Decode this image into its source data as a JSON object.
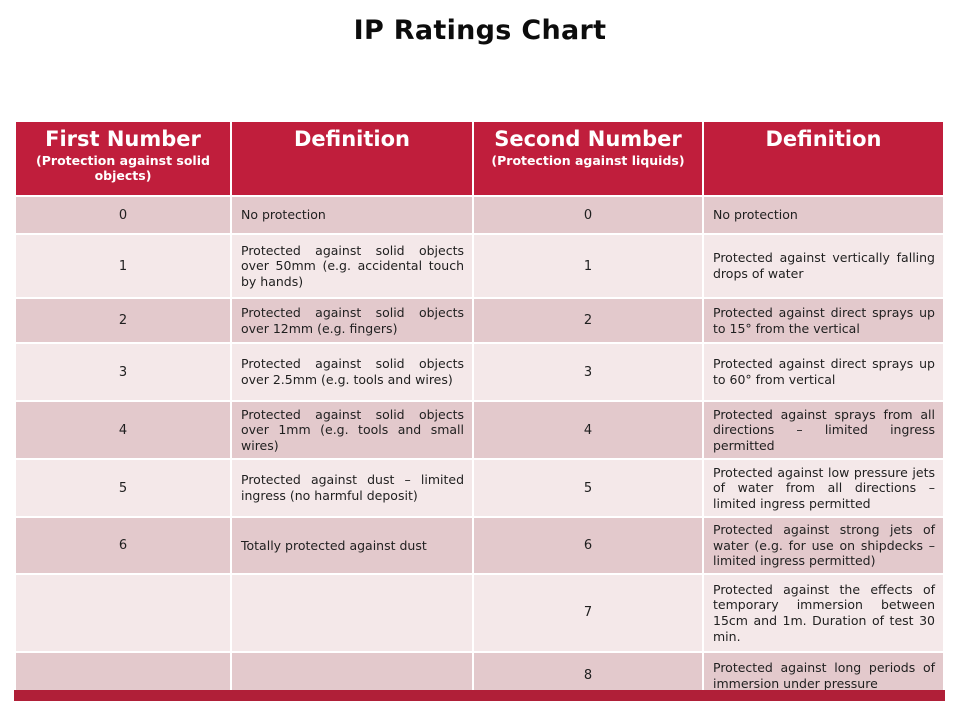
{
  "title": "IP Ratings Chart",
  "colors": {
    "header_bg": "#c01e3c",
    "row_dark": "#e3c9cc",
    "row_light": "#f4e8e9",
    "header_text": "#ffffff",
    "body_text": "#1f1f1f",
    "footer_bar": "#b01f38"
  },
  "chart_data": {
    "type": "table",
    "title": "IP Ratings Chart",
    "columns": [
      {
        "title": "First Number",
        "subtitle": "(Protection against solid objects)"
      },
      {
        "title": "Definition",
        "subtitle": ""
      },
      {
        "title": "Second Number",
        "subtitle": "(Protection against liquids)"
      },
      {
        "title": "Definition",
        "subtitle": ""
      }
    ],
    "rows": [
      [
        "0",
        "No protection",
        "0",
        "No protection"
      ],
      [
        "1",
        "Protected against solid objects over 50mm (e.g. accidental touch by hands)",
        "1",
        "Protected against vertically falling drops of water"
      ],
      [
        "2",
        "Protected against solid objects over 12mm (e.g. fingers)",
        "2",
        "Protected against direct sprays up to 15° from the vertical"
      ],
      [
        "3",
        "Protected against solid objects over 2.5mm (e.g. tools and wires)",
        "3",
        "Protected against direct sprays up to 60° from vertical"
      ],
      [
        "4",
        "Protected against solid objects over 1mm (e.g. tools and small wires)",
        "4",
        "Protected against sprays from all directions – limited ingress permitted"
      ],
      [
        "5",
        "Protected against dust – limited ingress (no harmful deposit)",
        "5",
        "Protected against low pressure jets of water from all directions – limited ingress permitted"
      ],
      [
        "6",
        "Totally protected against dust",
        "6",
        "Protected against strong jets of water (e.g. for use on shipdecks – limited ingress permitted)"
      ],
      [
        "",
        "",
        "7",
        "Protected against the effects of temporary immersion between 15cm and 1m. Duration of test 30 min."
      ],
      [
        "",
        "",
        "8",
        "Protected against long periods of immersion under pressure"
      ]
    ]
  }
}
